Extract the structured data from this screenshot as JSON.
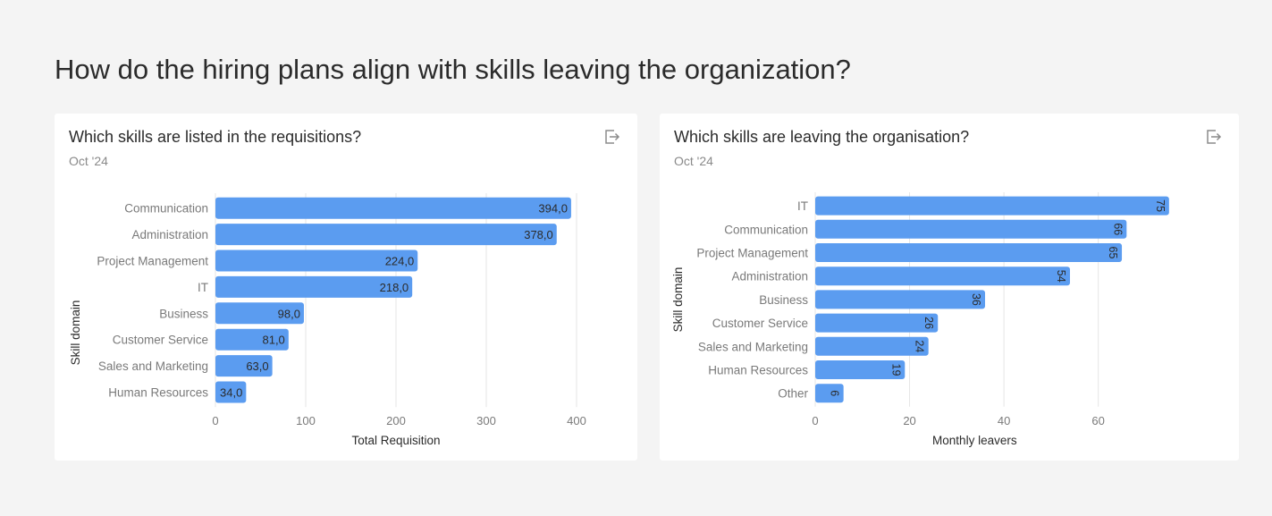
{
  "page": {
    "title": "How do the hiring plans align with skills leaving the organization?"
  },
  "colors": {
    "bar": "#5b9cf0",
    "background": "#f4f4f4",
    "card": "#ffffff",
    "grid": "#e6e6e6",
    "text": "#2b2b2b",
    "muted": "#7a7a7a"
  },
  "icons": {
    "export": "export-icon"
  },
  "cards": [
    {
      "title": "Which skills are listed in the requisitions?",
      "subtitle": "Oct '24"
    },
    {
      "title": "Which skills are leaving the organisation?",
      "subtitle": "Oct '24"
    }
  ],
  "chart_data": [
    {
      "type": "bar",
      "orientation": "horizontal",
      "categories": [
        "Communication",
        "Administration",
        "Project Management",
        "IT",
        "Business",
        "Customer Service",
        "Sales and Marketing",
        "Human Resources"
      ],
      "values": [
        394,
        378,
        224,
        218,
        98,
        81,
        63,
        34
      ],
      "data_labels": [
        "394,0",
        "378,0",
        "224,0",
        "218,0",
        "98,0",
        "81,0",
        "63,0",
        "34,0"
      ],
      "label_rotation": 0,
      "xlabel": "Total Requisition",
      "ylabel": "Skill domain",
      "xlim": [
        0,
        400
      ],
      "xticks": [
        0,
        100,
        200,
        300,
        400
      ],
      "grid": true
    },
    {
      "type": "bar",
      "orientation": "horizontal",
      "categories": [
        "IT",
        "Communication",
        "Project Management",
        "Administration",
        "Business",
        "Customer Service",
        "Sales and Marketing",
        "Human Resources",
        "Other"
      ],
      "values": [
        75,
        66,
        65,
        54,
        36,
        26,
        24,
        19,
        6
      ],
      "data_labels": [
        "75",
        "66",
        "65",
        "54",
        "36",
        "26",
        "24",
        "19",
        "6"
      ],
      "label_rotation": 90,
      "xlabel": "Monthly leavers",
      "ylabel": "Skill domain",
      "xlim": [
        0,
        75
      ],
      "xticks": [
        0,
        20,
        40,
        60
      ],
      "grid": true
    }
  ]
}
